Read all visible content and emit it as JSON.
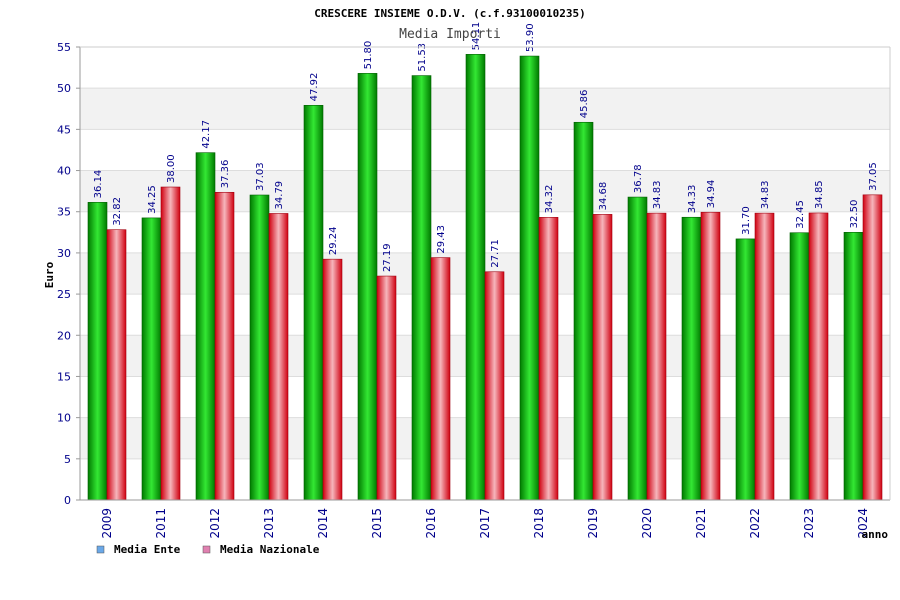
{
  "chart_data": {
    "type": "bar",
    "title": "CRESCERE INSIEME O.D.V. (c.f.93100010235)",
    "subtitle": "Media Importi",
    "xlabel": "anno",
    "ylabel": "Euro",
    "ylim": [
      0,
      55
    ],
    "yticks": [
      "0",
      "5",
      "10",
      "15",
      "20",
      "25",
      "30",
      "35",
      "40",
      "45",
      "50",
      "55"
    ],
    "grid": true,
    "legend_position": "bottom-left",
    "categories": [
      "2009",
      "2011",
      "2012",
      "2013",
      "2014",
      "2015",
      "2016",
      "2017",
      "2018",
      "2019",
      "2020",
      "2021",
      "2022",
      "2023",
      "2024"
    ],
    "series": [
      {
        "name": "Media Ente",
        "color": "#00a000",
        "legend_color": "#6aa8e8",
        "values": [
          36.14,
          34.25,
          42.17,
          37.03,
          47.92,
          51.8,
          51.53,
          54.11,
          53.9,
          45.86,
          36.78,
          34.33,
          31.7,
          32.45,
          32.5
        ],
        "labels": [
          "36.14",
          "34.25",
          "42.17",
          "37.03",
          "47.92",
          "51.80",
          "51.53",
          "54.11",
          "53.90",
          "45.86",
          "36.78",
          "34.33",
          "31.70",
          "32.45",
          "32.50"
        ]
      },
      {
        "name": "Media Nazionale",
        "color": "#e01020",
        "legend_color": "#e080b0",
        "values": [
          32.82,
          38.0,
          37.36,
          34.79,
          29.24,
          27.19,
          29.43,
          27.71,
          34.32,
          34.68,
          34.83,
          34.94,
          34.83,
          34.85,
          37.05
        ],
        "labels": [
          "32.82",
          "38.00",
          "37.36",
          "34.79",
          "29.24",
          "27.19",
          "29.43",
          "27.71",
          "34.32",
          "34.68",
          "34.83",
          "34.94",
          "34.83",
          "34.85",
          "37.05"
        ]
      }
    ]
  }
}
